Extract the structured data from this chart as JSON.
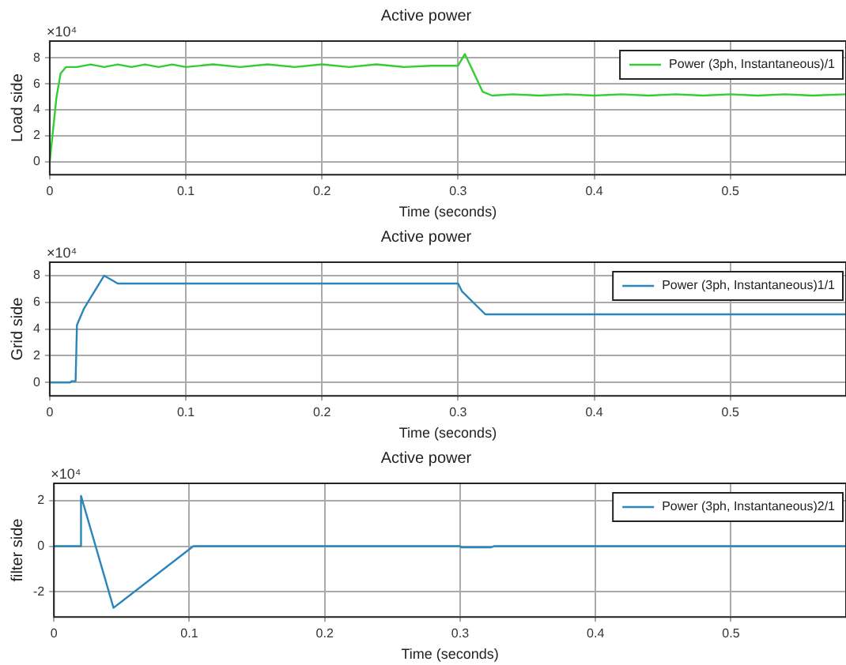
{
  "chart_data": [
    {
      "type": "line",
      "title": "Active power",
      "xlabel": "Time (seconds)",
      "ylabel": "Load side",
      "annotations": [
        "×10⁴"
      ],
      "xlim": [
        0,
        0.585
      ],
      "xticks": [
        0,
        0.1,
        0.2,
        0.3,
        0.4,
        0.5
      ],
      "ylim": [
        -1,
        9.3
      ],
      "yticks": [
        0,
        2,
        4,
        6,
        8
      ],
      "grid": true,
      "legend": "top right",
      "marker": "none",
      "line_style": "solid",
      "series": [
        {
          "name": "Power (3ph, Instantaneous)/1",
          "color": "#33cc33",
          "x": [
            0,
            0.002,
            0.005,
            0.008,
            0.012,
            0.02,
            0.03,
            0.04,
            0.05,
            0.06,
            0.07,
            0.08,
            0.09,
            0.1,
            0.12,
            0.14,
            0.16,
            0.18,
            0.2,
            0.22,
            0.24,
            0.26,
            0.28,
            0.3,
            0.305,
            0.31,
            0.318,
            0.325,
            0.34,
            0.36,
            0.38,
            0.4,
            0.42,
            0.44,
            0.46,
            0.48,
            0.5,
            0.52,
            0.54,
            0.56,
            0.585
          ],
          "values": [
            0,
            2,
            5,
            6.8,
            7.3,
            7.3,
            7.5,
            7.3,
            7.5,
            7.3,
            7.5,
            7.3,
            7.5,
            7.3,
            7.5,
            7.3,
            7.5,
            7.3,
            7.5,
            7.3,
            7.5,
            7.3,
            7.4,
            7.4,
            8.3,
            7.2,
            5.4,
            5.1,
            5.2,
            5.1,
            5.2,
            5.1,
            5.2,
            5.1,
            5.2,
            5.1,
            5.2,
            5.1,
            5.2,
            5.1,
            5.2
          ]
        }
      ]
    },
    {
      "type": "line",
      "title": "Active power",
      "xlabel": "Time (seconds)",
      "ylabel": "Grid side",
      "annotations": [
        "×10⁴"
      ],
      "xlim": [
        0,
        0.585
      ],
      "xticks": [
        0,
        0.1,
        0.2,
        0.3,
        0.4,
        0.5
      ],
      "ylim": [
        -1,
        9
      ],
      "yticks": [
        0,
        2,
        4,
        6,
        8
      ],
      "grid": true,
      "legend": "top right",
      "marker": "none",
      "line_style": "solid",
      "series": [
        {
          "name": "Power (3ph, Instantaneous)1/1",
          "color": "#2a86b8",
          "x": [
            0,
            0.015,
            0.016,
            0.019,
            0.02,
            0.025,
            0.04,
            0.05,
            0.3,
            0.303,
            0.32,
            0.585
          ],
          "values": [
            0,
            0,
            0.1,
            0.1,
            4.3,
            5.5,
            8,
            7.4,
            7.4,
            6.8,
            5.1,
            5.1
          ]
        }
      ]
    },
    {
      "type": "line",
      "title": "Active power",
      "xlabel": "Time (seconds)",
      "ylabel": "filter side",
      "annotations": [
        "×10⁴"
      ],
      "xlim": [
        0,
        0.585
      ],
      "xticks": [
        0,
        0.1,
        0.2,
        0.3,
        0.4,
        0.5
      ],
      "ylim": [
        -3.1,
        2.75
      ],
      "yticks": [
        -2,
        0,
        2
      ],
      "grid": true,
      "legend": "top right",
      "marker": "none",
      "line_style": "solid",
      "series": [
        {
          "name": "Power (3ph, Instantaneous)2/1",
          "color": "#2a86b8",
          "x": [
            0,
            0.02,
            0.02,
            0.044,
            0.103,
            0.3,
            0.301,
            0.323,
            0.325,
            0.585
          ],
          "values": [
            0,
            0,
            2.2,
            -2.7,
            0,
            0,
            -0.05,
            -0.05,
            0,
            0
          ]
        }
      ]
    }
  ]
}
